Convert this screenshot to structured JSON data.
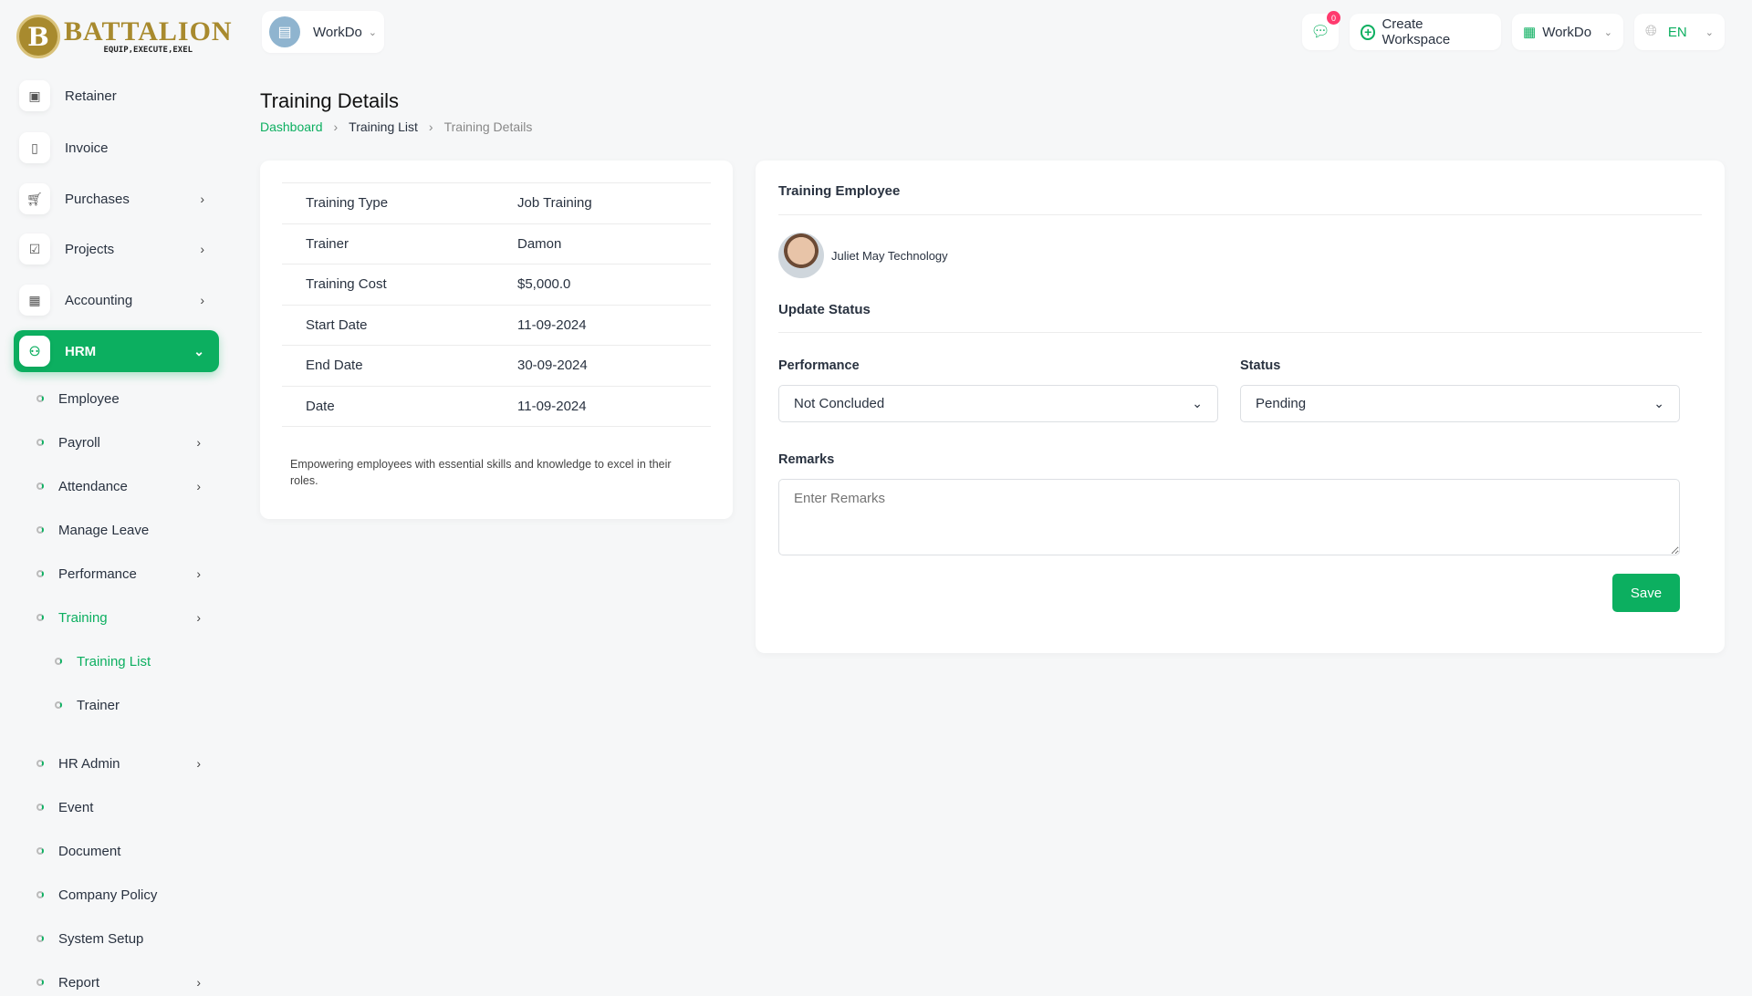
{
  "logo": {
    "title": "BATTALION",
    "tagline": "EQUIP,EXECUTE,EXEL",
    "letter": "B"
  },
  "topbar": {
    "workspace": "WorkDo",
    "chat_badge": "0",
    "create_workspace": "Create Workspace",
    "workspace_switch": "WorkDo",
    "language": "EN"
  },
  "sidebar": {
    "items": [
      {
        "label": "Retainer",
        "icon": "save-icon"
      },
      {
        "label": "Invoice",
        "icon": "file-icon"
      },
      {
        "label": "Purchases",
        "icon": "cart-icon"
      },
      {
        "label": "Projects",
        "icon": "checkbox-icon"
      },
      {
        "label": "Accounting",
        "icon": "grid-icon"
      },
      {
        "label": "HRM",
        "icon": "hrm-icon"
      }
    ],
    "hrm_sub": [
      "Employee",
      "Payroll",
      "Attendance",
      "Manage Leave",
      "Performance",
      "Training",
      "HR Admin",
      "Event",
      "Document",
      "Company Policy",
      "System Setup",
      "Report"
    ],
    "training_sub": [
      "Training List",
      "Trainer"
    ]
  },
  "page": {
    "title": "Training Details",
    "breadcrumb": [
      "Dashboard",
      "Training List",
      "Training Details"
    ]
  },
  "details": {
    "rows": [
      {
        "k": "Training Type",
        "v": "Job Training"
      },
      {
        "k": "Trainer",
        "v": "Damon"
      },
      {
        "k": "Training Cost",
        "v": "$5,000.0"
      },
      {
        "k": "Start Date",
        "v": "11-09-2024"
      },
      {
        "k": "End Date",
        "v": "30-09-2024"
      },
      {
        "k": "Date",
        "v": "11-09-2024"
      }
    ],
    "description": "Empowering employees with essential skills and knowledge to excel in their roles."
  },
  "employee": {
    "heading": "Training Employee",
    "name": "Juliet May Technology",
    "update_heading": "Update Status",
    "performance_label": "Performance",
    "performance_value": "Not Concluded",
    "status_label": "Status",
    "status_value": "Pending",
    "remarks_label": "Remarks",
    "remarks_placeholder": "Enter Remarks",
    "save": "Save"
  },
  "colors": {
    "accent": "#0caf60",
    "badge": "#ff3a6e"
  }
}
